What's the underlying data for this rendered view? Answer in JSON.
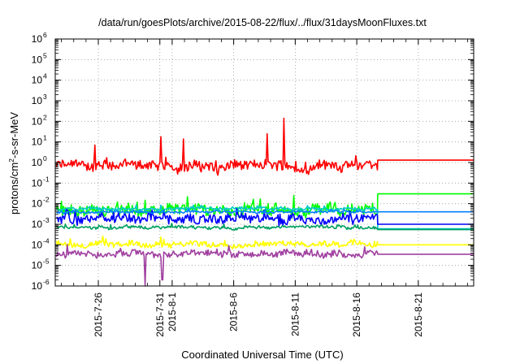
{
  "chart_data": {
    "type": "line",
    "title": "/data/run/goesPlots/archive/2015-08-22/flux/../flux/31daysMoonFluxes.txt",
    "xlabel": "Coordinated Universal Time (UTC)",
    "ylabel_parts": [
      "protons/cm",
      "2",
      "-s-sr-MeV"
    ],
    "x_ticks": [
      "2015-7-26",
      "2015-7-31",
      "2015-8-1",
      "2015-8-6",
      "2015-8-11",
      "2015-8-16",
      "2015-8-21"
    ],
    "x_tick_days": [
      -5,
      0,
      1,
      6,
      11,
      16,
      21
    ],
    "xlim_days": [
      -8.5,
      25.5
    ],
    "x_reference_date": "2015-7-31",
    "y_scale": "log",
    "ylim": [
      1e-06,
      1000000.0
    ],
    "y_tick_exponents": [
      -6,
      -5,
      -4,
      -3,
      -2,
      -1,
      0,
      1,
      2,
      3,
      4,
      5,
      6
    ],
    "grid": true,
    "data_end_day": 17.7,
    "series": [
      {
        "color": "#ff0000",
        "median": 0.7,
        "noise_dex": 0.28,
        "level_after": 1.3,
        "spikes": [
          {
            "day": 10.1,
            "value": 140
          },
          {
            "day": 8.7,
            "value": 25
          },
          {
            "day": 1.9,
            "value": 14
          },
          {
            "day": 0.1,
            "value": 18
          },
          {
            "day": -5.3,
            "value": 7
          }
        ]
      },
      {
        "color": "#00ff00",
        "median": 0.005,
        "noise_dex": 0.32,
        "level_after": 0.03
      },
      {
        "color": "#00c8c8",
        "median": 0.0055,
        "noise_dex": 0.08,
        "level_after": 0.0006
      },
      {
        "color": "#0000ff",
        "median": 0.0018,
        "noise_dex": 0.24,
        "level_after": 0.001
      },
      {
        "color": "#0080ff",
        "median": 0.004,
        "noise_dex": 0.06,
        "level_after": 0.004
      },
      {
        "color": "#00a060",
        "median": 0.0007,
        "noise_dex": 0.08,
        "level_after": 0.00055
      },
      {
        "color": "#ffff00",
        "median": 0.00011,
        "noise_dex": 0.15,
        "level_after": 0.0001
      },
      {
        "color": "#a040a0",
        "median": 3.5e-05,
        "noise_dex": 0.18,
        "level_after": 3.5e-05,
        "dips": [
          {
            "day": -1.2,
            "value": 1e-06
          },
          {
            "day": 0.2,
            "value": 2e-06
          }
        ]
      }
    ]
  }
}
